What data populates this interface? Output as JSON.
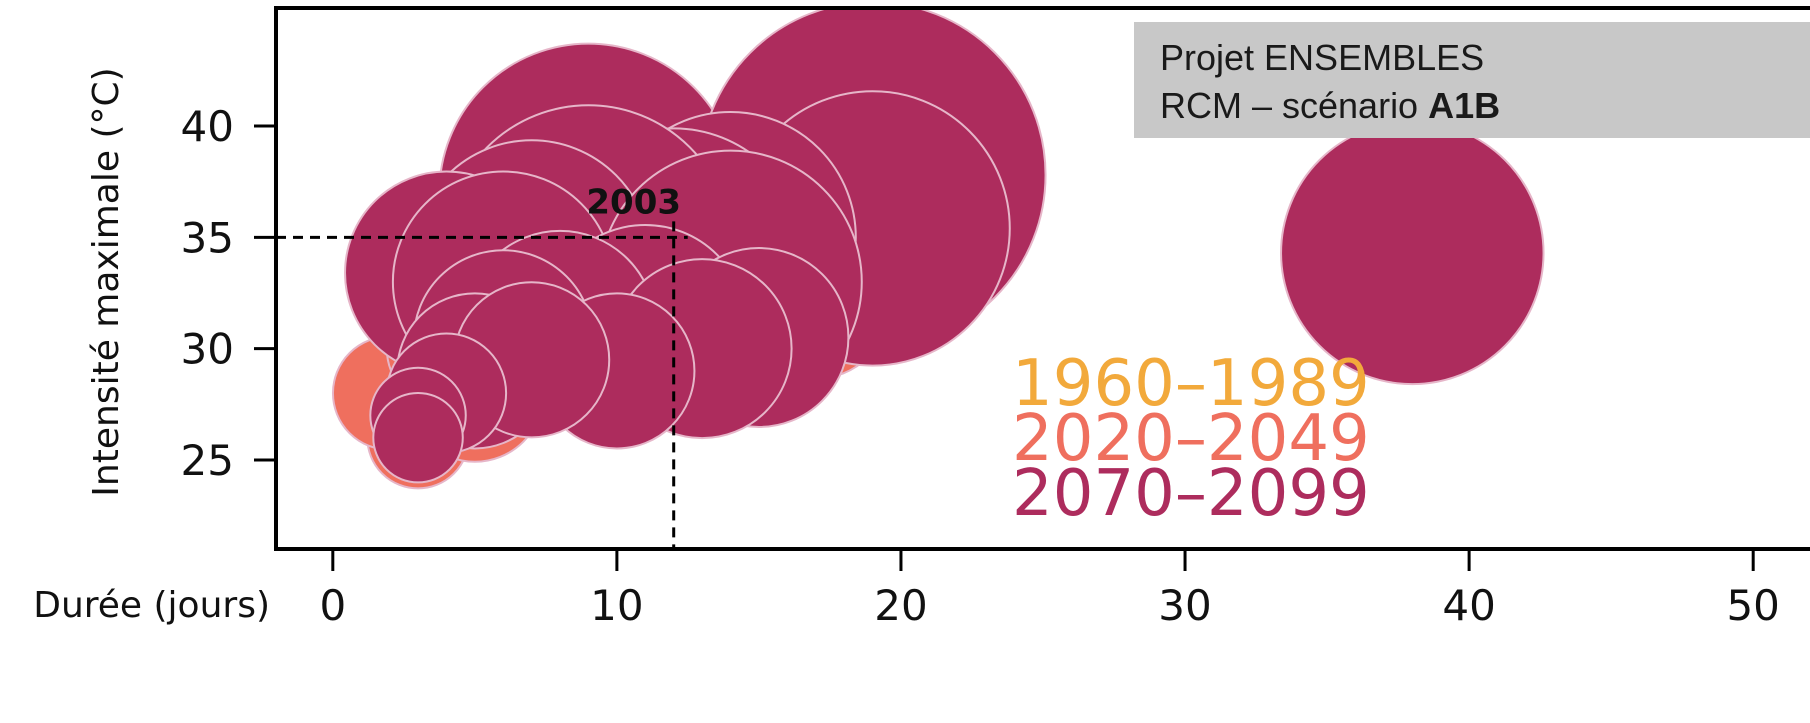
{
  "chart_data": {
    "type": "scatter",
    "title": "",
    "xlabel": "Durée (jours)",
    "ylabel": "Intensité maximale (°C)",
    "xlim": [
      -2,
      52
    ],
    "ylim": [
      21,
      45.3
    ],
    "xticks": [
      0,
      10,
      20,
      30,
      40,
      50
    ],
    "yticks": [
      25,
      30,
      35,
      40
    ],
    "info_box": {
      "line1": "Projet ENSEMBLES",
      "line2_prefix": "RCM – scénario ",
      "line2_bold": "A1B"
    },
    "annotation": {
      "label": "2003",
      "x": 12,
      "y": 35
    },
    "legend_position": "lower-right",
    "colors": {
      "axis": "#000000",
      "point_stroke": "#e6b6c9",
      "info_box_bg": "#c8c8c8"
    },
    "series": [
      {
        "name": "1960–1989",
        "color": "#f2a93b",
        "points": [
          {
            "x": 2,
            "y": 28,
            "size": 1.5
          },
          {
            "x": 3,
            "y": 26,
            "size": 1.4
          },
          {
            "x": 3,
            "y": 30,
            "size": 1.6
          }
        ]
      },
      {
        "name": "2020–2049",
        "color": "#ef6f5e",
        "points": [
          {
            "x": 3,
            "y": 26,
            "size": 1.7
          },
          {
            "x": 2,
            "y": 28,
            "size": 1.9
          },
          {
            "x": 4,
            "y": 30,
            "size": 2.0
          },
          {
            "x": 4,
            "y": 34,
            "size": 2.8
          },
          {
            "x": 5,
            "y": 28,
            "size": 2.3
          },
          {
            "x": 6,
            "y": 32,
            "size": 3.0
          },
          {
            "x": 17,
            "y": 32,
            "size": 2.5
          },
          {
            "x": 16,
            "y": 35,
            "size": 3.5
          },
          {
            "x": 18,
            "y": 35,
            "size": 4.0
          }
        ]
      },
      {
        "name": "2070–2099",
        "color": "#ad2c5d",
        "points": [
          {
            "x": 9,
            "y": 37,
            "size": 5.0
          },
          {
            "x": 16,
            "y": 35,
            "size": 4.3
          },
          {
            "x": 19,
            "y": 37.8,
            "size": 5.8
          },
          {
            "x": 19,
            "y": 35.4,
            "size": 4.6
          },
          {
            "x": 14,
            "y": 35,
            "size": 4.2
          },
          {
            "x": 12,
            "y": 34,
            "size": 4.4
          },
          {
            "x": 9,
            "y": 34.5,
            "size": 4.8
          },
          {
            "x": 7,
            "y": 34,
            "size": 4.0
          },
          {
            "x": 4,
            "y": 33.4,
            "size": 3.4
          },
          {
            "x": 6,
            "y": 33,
            "size": 3.7
          },
          {
            "x": 14,
            "y": 33,
            "size": 4.4
          },
          {
            "x": 11,
            "y": 31,
            "size": 3.4
          },
          {
            "x": 8,
            "y": 31,
            "size": 3.2
          },
          {
            "x": 15,
            "y": 30.5,
            "size": 3.0
          },
          {
            "x": 13,
            "y": 30,
            "size": 3.0
          },
          {
            "x": 6,
            "y": 30.4,
            "size": 3.0
          },
          {
            "x": 5,
            "y": 29,
            "size": 2.6
          },
          {
            "x": 10,
            "y": 29,
            "size": 2.6
          },
          {
            "x": 7,
            "y": 29.5,
            "size": 2.6
          },
          {
            "x": 4,
            "y": 28,
            "size": 2.0
          },
          {
            "x": 3,
            "y": 27,
            "size": 1.6
          },
          {
            "x": 3,
            "y": 26,
            "size": 1.5
          },
          {
            "x": 38,
            "y": 34.3,
            "size": 4.4
          }
        ]
      }
    ]
  }
}
